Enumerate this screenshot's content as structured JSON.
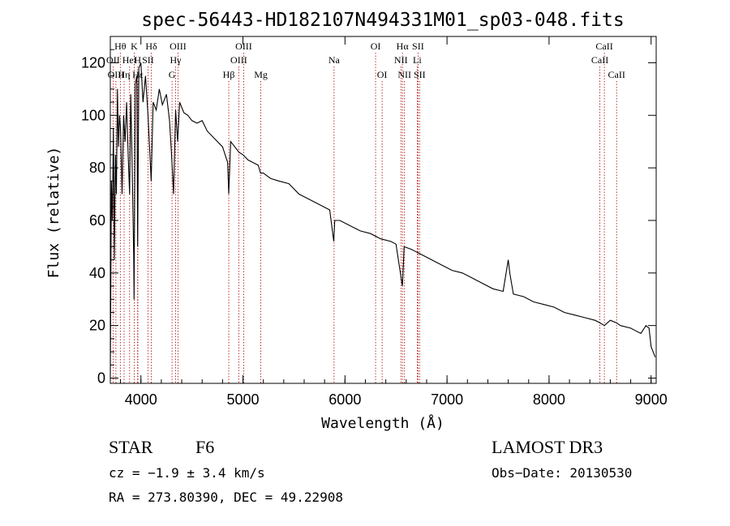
{
  "chart_data": {
    "type": "line",
    "title": "spec-56443-HD182107N494331M01_sp03-048.fits",
    "xlabel": "Wavelength (Å)",
    "ylabel": "Flux (relative)",
    "xlim": [
      3700,
      9050
    ],
    "ylim": [
      -2,
      130
    ],
    "xticks": [
      4000,
      5000,
      6000,
      7000,
      8000,
      9000
    ],
    "yticks": [
      0,
      20,
      40,
      60,
      80,
      100,
      120
    ],
    "line_color": "#000000",
    "marker_color": "#aa0000",
    "series": [
      {
        "name": "flux",
        "x": [
          3700,
          3710,
          3720,
          3730,
          3740,
          3750,
          3760,
          3770,
          3780,
          3790,
          3800,
          3815,
          3830,
          3845,
          3860,
          3875,
          3889,
          3900,
          3915,
          3930,
          3933,
          3945,
          3960,
          3968,
          3980,
          4000,
          4020,
          4045,
          4070,
          4101,
          4120,
          4150,
          4180,
          4210,
          4250,
          4280,
          4300,
          4320,
          4340,
          4360,
          4380,
          4420,
          4460,
          4500,
          4550,
          4600,
          4650,
          4700,
          4750,
          4800,
          4850,
          4861,
          4880,
          4920,
          4960,
          5000,
          5050,
          5100,
          5150,
          5172,
          5200,
          5270,
          5350,
          5450,
          5550,
          5650,
          5750,
          5850,
          5890,
          5900,
          5950,
          6050,
          6150,
          6250,
          6350,
          6450,
          6500,
          6563,
          6580,
          6650,
          6750,
          6850,
          6950,
          7050,
          7150,
          7250,
          7350,
          7450,
          7550,
          7600,
          7615,
          7650,
          7750,
          7850,
          7950,
          8050,
          8150,
          8250,
          8350,
          8450,
          8500,
          8542,
          8600,
          8662,
          8700,
          8800,
          8850,
          8900,
          8950,
          8980,
          9000,
          9020,
          9040
        ],
        "y": [
          0,
          75,
          60,
          95,
          45,
          85,
          70,
          110,
          88,
          100,
          95,
          70,
          100,
          90,
          105,
          85,
          70,
          108,
          80,
          45,
          30,
          112,
          115,
          50,
          118,
          120,
          105,
          115,
          100,
          75,
          105,
          102,
          110,
          104,
          108,
          98,
          85,
          70,
          102,
          90,
          105,
          101,
          100,
          98,
          97,
          98,
          94,
          92,
          90,
          88,
          82,
          70,
          90,
          88,
          86,
          85,
          83,
          82,
          81,
          78,
          78,
          76,
          75,
          74,
          70,
          68,
          66,
          64,
          52,
          60,
          60,
          58,
          56,
          55,
          53,
          52,
          51,
          35,
          50,
          49,
          47,
          45,
          43,
          41,
          40,
          38,
          36,
          34,
          33,
          45,
          40,
          32,
          31,
          29,
          28,
          27,
          25,
          24,
          23,
          22,
          21,
          20,
          22,
          21,
          20,
          19,
          18,
          17,
          20,
          19,
          12,
          10,
          8
        ]
      }
    ],
    "line_markers": [
      {
        "name": "OII",
        "wl": 3727,
        "row": 2
      },
      {
        "name": "OIII",
        "wl": 3755,
        "row": 3
      },
      {
        "name": "Hθ",
        "wl": 3798,
        "row": 1
      },
      {
        "name": "Hη",
        "wl": 3835,
        "row": 3
      },
      {
        "name": "HeI",
        "wl": 3889,
        "row": 2
      },
      {
        "name": "K",
        "wl": 3934,
        "row": 1
      },
      {
        "name": "Hε",
        "wl": 3970,
        "row": 3
      },
      {
        "name": "H",
        "wl": 3968,
        "row": 2
      },
      {
        "name": "SII",
        "wl": 4069,
        "row": 2
      },
      {
        "name": "Hδ",
        "wl": 4102,
        "row": 1
      },
      {
        "name": "OIII",
        "wl": 4363,
        "row": 1
      },
      {
        "name": "Hγ",
        "wl": 4340,
        "row": 2
      },
      {
        "name": "G",
        "wl": 4305,
        "row": 3
      },
      {
        "name": "Hβ",
        "wl": 4861,
        "row": 3
      },
      {
        "name": "OIII",
        "wl": 5007,
        "row": 1
      },
      {
        "name": "OIII",
        "wl": 4959,
        "row": 2
      },
      {
        "name": "Mg",
        "wl": 5175,
        "row": 3
      },
      {
        "name": "Na",
        "wl": 5893,
        "row": 2
      },
      {
        "name": "OI",
        "wl": 6300,
        "row": 1
      },
      {
        "name": "OI",
        "wl": 6364,
        "row": 3
      },
      {
        "name": "Hα",
        "wl": 6563,
        "row": 1
      },
      {
        "name": "NII",
        "wl": 6548,
        "row": 2
      },
      {
        "name": "NII",
        "wl": 6583,
        "row": 3
      },
      {
        "name": "SII",
        "wl": 6716,
        "row": 1
      },
      {
        "name": "Li",
        "wl": 6708,
        "row": 2
      },
      {
        "name": "SII",
        "wl": 6731,
        "row": 3
      },
      {
        "name": "CaII",
        "wl": 8542,
        "row": 1
      },
      {
        "name": "CaII",
        "wl": 8498,
        "row": 2
      },
      {
        "name": "CaII",
        "wl": 8662,
        "row": 3
      }
    ]
  },
  "info": {
    "object_class": "STAR",
    "subclass": "F6",
    "cz": "cz = −1.9 ± 3.4 km/s",
    "coords": "RA = 273.80390, DEC =  49.22908",
    "survey": "LAMOST DR3",
    "obs_date": "Obs−Date: 20130530"
  }
}
